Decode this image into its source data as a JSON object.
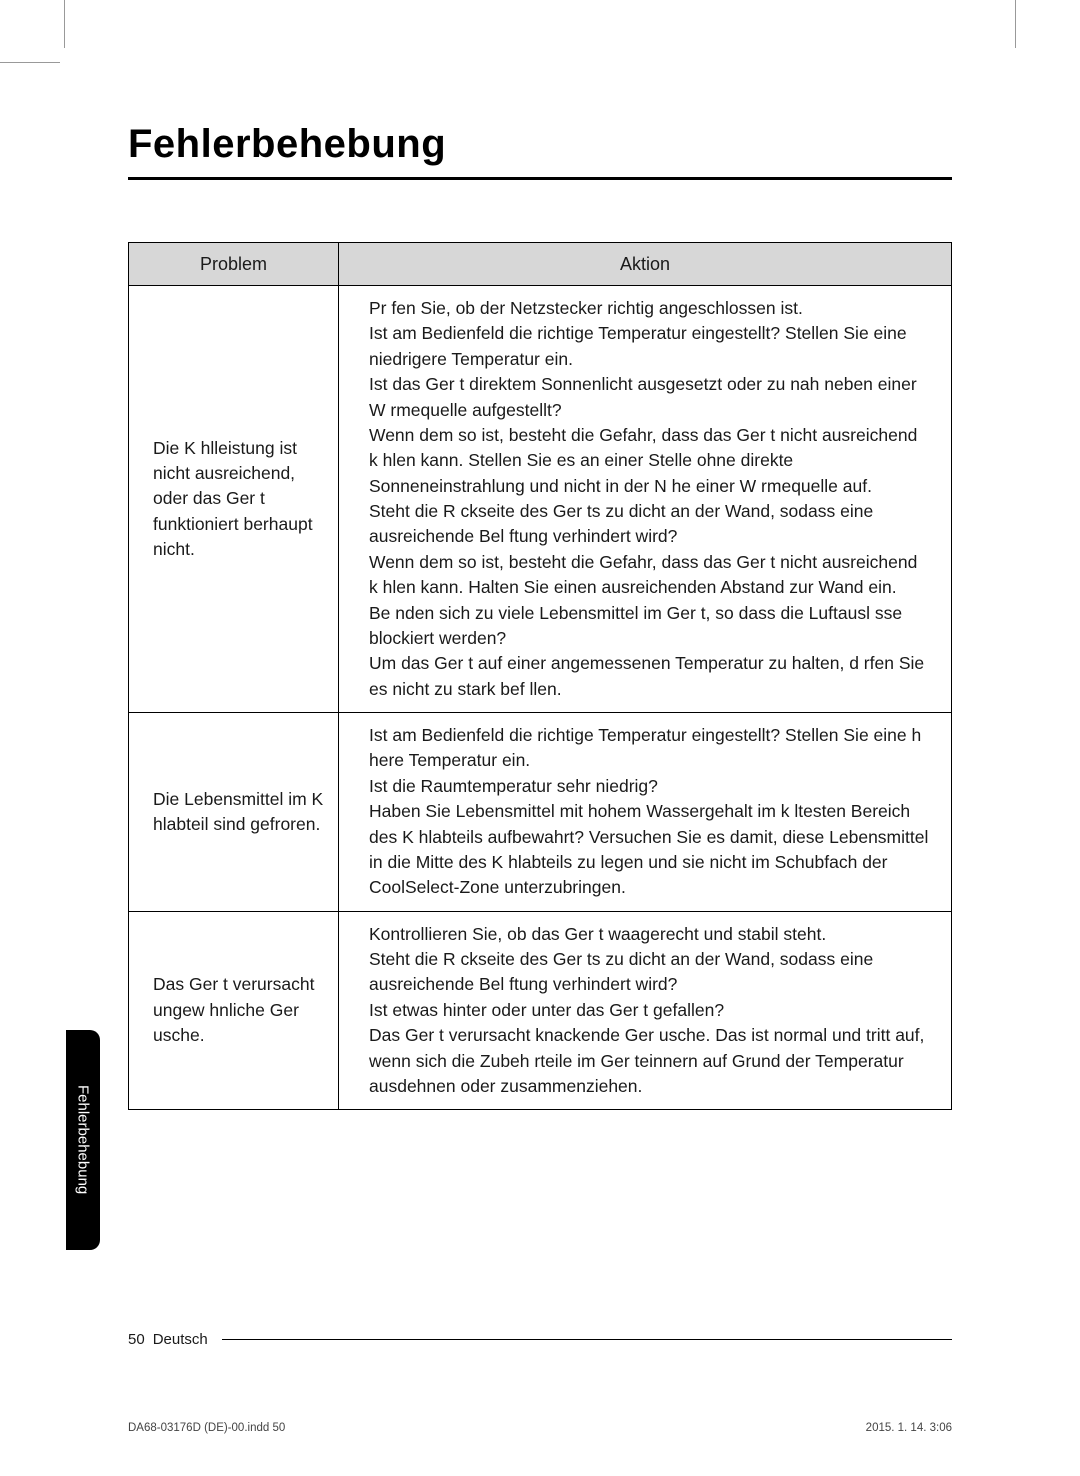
{
  "heading": "Fehlerbehebung",
  "table": {
    "headers": {
      "problem": "Problem",
      "aktion": "Aktion"
    },
    "rows": [
      {
        "problem": "Die K hlleistung ist nicht ausreichend, oder das Ger t funktioniert  berhaupt nicht.",
        "aktion": "Pr fen Sie, ob der Netzstecker richtig angeschlossen ist.\nIst am Bedienfeld die richtige Temperatur eingestellt? Stellen Sie eine niedrigere Temperatur ein.\nIst das Ger t direktem Sonnenlicht ausgesetzt oder zu nah neben einer W rmequelle aufgestellt?\nWenn dem so ist, besteht die Gefahr, dass das Ger t nicht ausreichend k hlen kann. Stellen Sie es an einer Stelle ohne direkte Sonneneinstrahlung und nicht in der N he einer W rmequelle auf.\nSteht die R ckseite des Ger ts zu dicht an der Wand, sodass eine ausreichende Bel ftung verhindert wird?\nWenn dem so ist, besteht die Gefahr, dass das Ger t nicht ausreichend k hlen kann. Halten Sie einen ausreichenden Abstand zur Wand ein.\nBe nden sich zu viele Lebensmittel im Ger t, so dass die Luftausl sse blockiert werden?\nUm das Ger t auf einer angemessenen Temperatur zu halten, d rfen Sie es nicht zu stark bef llen."
      },
      {
        "problem": "Die Lebensmittel im K hlabteil sind gefroren.",
        "aktion": "Ist am Bedienfeld die richtige Temperatur eingestellt? Stellen Sie eine h here Temperatur ein.\nIst die Raumtemperatur sehr niedrig?\nHaben Sie Lebensmittel mit hohem Wassergehalt im k ltesten Bereich des K hlabteils aufbewahrt? Versuchen Sie es damit, diese Lebensmittel in die Mitte des K hlabteils zu legen und sie nicht im Schubfach der CoolSelect-Zone unterzubringen."
      },
      {
        "problem": "Das Ger t verursacht ungew hnliche Ger usche.",
        "aktion": "Kontrollieren Sie, ob das Ger t waagerecht und stabil steht.\nSteht die R ckseite des Ger ts zu dicht an der Wand, sodass eine ausreichende Bel ftung verhindert wird?\nIst etwas hinter oder unter das Ger t gefallen?\nDas Ger t verursacht knackende Ger usche. Das ist normal und tritt auf, wenn sich die Zubeh rteile im Ger teinnern auf Grund der Temperatur ausdehnen oder zusammenziehen."
      }
    ]
  },
  "sidebar_label": "Fehlerbehebung",
  "footer": {
    "page": "50",
    "language": "Deutsch"
  },
  "meta": {
    "file": "DA68-03176D (DE)-00.indd   50",
    "timestamp": "2015. 1. 14.    3:06"
  }
}
